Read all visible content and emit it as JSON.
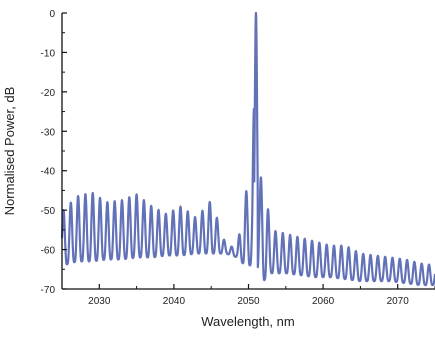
{
  "chart_data": {
    "type": "line",
    "title": "",
    "xlabel": "Wavelength, nm",
    "ylabel": "Normalised Power, dB",
    "xlim": [
      2025,
      2075
    ],
    "ylim": [
      -70,
      0
    ],
    "x_ticks": [
      2030,
      2040,
      2050,
      2060,
      2070
    ],
    "y_ticks": [
      0,
      -10,
      -20,
      -30,
      -40,
      -50,
      -60,
      -70
    ],
    "grid": false,
    "legend": "none",
    "series": [
      {
        "color": "#6272b8",
        "description_points": {
          "x": [
            2025.2,
            2027.0,
            2029.0,
            2031.0,
            2033.0,
            2035.0,
            2037.0,
            2039.0,
            2041.0,
            2043.0,
            2045.0,
            2047.0,
            2048.5,
            2049.5,
            2050.5,
            2051.0,
            2051.5,
            2052.0,
            2053.0,
            2055.0,
            2057.0,
            2059.0,
            2061.0,
            2063.0,
            2065.0,
            2067.0,
            2069.0,
            2071.0,
            2073.0,
            2075.0
          ],
          "peak_y": [
            -50,
            -46.5,
            -45.5,
            -48,
            -47.5,
            -46,
            -49,
            -51,
            -49,
            -52,
            -47.5,
            -59,
            -59.5,
            -46,
            -42,
            0,
            -42,
            -41,
            -55,
            -56,
            -57,
            -58,
            -59,
            -59,
            -61,
            -61.5,
            -62,
            -62.5,
            -63.5,
            -64
          ],
          "trough_y": [
            -64,
            -63,
            -63,
            -62.5,
            -62.5,
            -62,
            -62,
            -61.5,
            -61.5,
            -61,
            -61,
            -61,
            -62,
            -64,
            -64,
            -64,
            -66,
            -68,
            -66,
            -66,
            -66.5,
            -67,
            -67,
            -67.5,
            -68,
            -68,
            -68,
            -68.5,
            -69,
            -69
          ]
        },
        "fringe_period_nm": 0.98
      }
    ]
  }
}
